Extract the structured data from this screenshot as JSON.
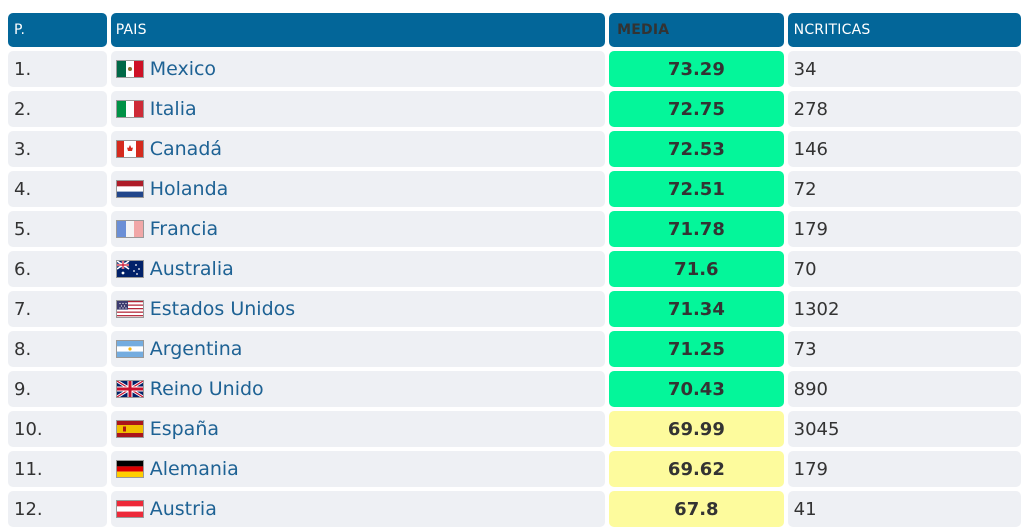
{
  "headers": {
    "pos": "P.",
    "pais": "PAIS",
    "media": "MEDIA",
    "ncriticas": "NCRITICAS"
  },
  "colors": {
    "header_bg": "#036699",
    "high_score": "#04f69a",
    "mid_score": "#fdfb9d",
    "row_bg": "#eef0f4",
    "link": "#1e6294"
  },
  "rows": [
    {
      "pos": "1.",
      "pais": "Mexico",
      "media": "73.29",
      "ncriticas": "34",
      "flag": "mexico-flag-icon",
      "level": "high"
    },
    {
      "pos": "2.",
      "pais": "Italia",
      "media": "72.75",
      "ncriticas": "278",
      "flag": "italy-flag-icon",
      "level": "high"
    },
    {
      "pos": "3.",
      "pais": "Canadá",
      "media": "72.53",
      "ncriticas": "146",
      "flag": "canada-flag-icon",
      "level": "high"
    },
    {
      "pos": "4.",
      "pais": "Holanda",
      "media": "72.51",
      "ncriticas": "72",
      "flag": "netherlands-flag-icon",
      "level": "high"
    },
    {
      "pos": "5.",
      "pais": "Francia",
      "media": "71.78",
      "ncriticas": "179",
      "flag": "france-flag-icon",
      "level": "high"
    },
    {
      "pos": "6.",
      "pais": "Australia",
      "media": "71.6",
      "ncriticas": "70",
      "flag": "australia-flag-icon",
      "level": "high"
    },
    {
      "pos": "7.",
      "pais": "Estados Unidos",
      "media": "71.34",
      "ncriticas": "1302",
      "flag": "usa-flag-icon",
      "level": "high"
    },
    {
      "pos": "8.",
      "pais": "Argentina",
      "media": "71.25",
      "ncriticas": "73",
      "flag": "argentina-flag-icon",
      "level": "high"
    },
    {
      "pos": "9.",
      "pais": "Reino Unido",
      "media": "70.43",
      "ncriticas": "890",
      "flag": "uk-flag-icon",
      "level": "high"
    },
    {
      "pos": "10.",
      "pais": "España",
      "media": "69.99",
      "ncriticas": "3045",
      "flag": "spain-flag-icon",
      "level": "mid"
    },
    {
      "pos": "11.",
      "pais": "Alemania",
      "media": "69.62",
      "ncriticas": "179",
      "flag": "germany-flag-icon",
      "level": "mid"
    },
    {
      "pos": "12.",
      "pais": "Austria",
      "media": "67.8",
      "ncriticas": "41",
      "flag": "austria-flag-icon",
      "level": "mid"
    }
  ]
}
